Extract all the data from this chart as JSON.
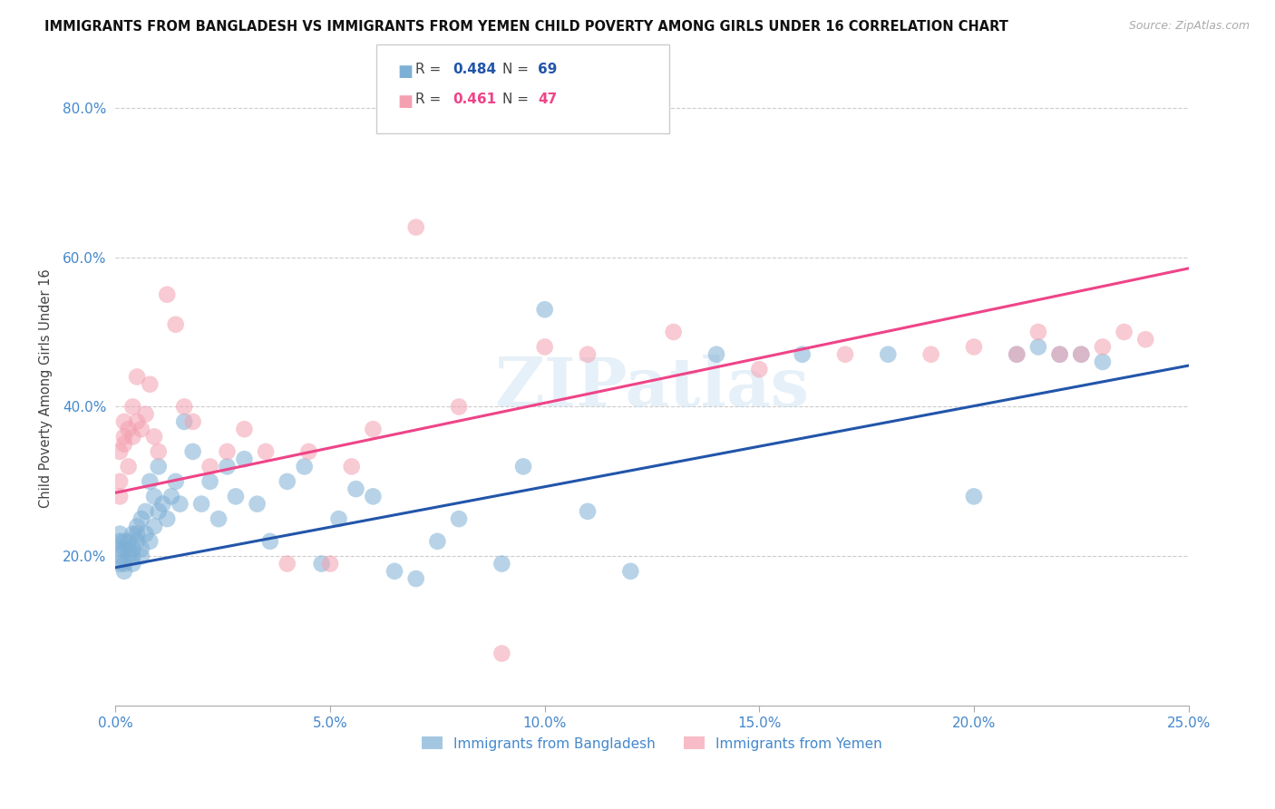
{
  "title": "IMMIGRANTS FROM BANGLADESH VS IMMIGRANTS FROM YEMEN CHILD POVERTY AMONG GIRLS UNDER 16 CORRELATION CHART",
  "source": "Source: ZipAtlas.com",
  "ylabel": "Child Poverty Among Girls Under 16",
  "xlim": [
    0.0,
    0.25
  ],
  "ylim": [
    0.0,
    0.85
  ],
  "xticks": [
    0.0,
    0.05,
    0.1,
    0.15,
    0.2,
    0.25
  ],
  "yticks": [
    0.0,
    0.2,
    0.4,
    0.6,
    0.8
  ],
  "xtick_labels": [
    "0.0%",
    "5.0%",
    "10.0%",
    "15.0%",
    "20.0%",
    "25.0%"
  ],
  "ytick_labels": [
    "",
    "20.0%",
    "40.0%",
    "60.0%",
    "80.0%"
  ],
  "legend_labels": [
    "Immigrants from Bangladesh",
    "Immigrants from Yemen"
  ],
  "legend_R": [
    0.484,
    0.461
  ],
  "legend_N": [
    69,
    47
  ],
  "blue_color": "#7EB0D5",
  "pink_color": "#F4A0B0",
  "blue_line_color": "#2255AA",
  "pink_line_color": "#EE4488",
  "title_color": "#111111",
  "axis_color": "#4488CC",
  "watermark": "ZIPatlas",
  "bangladesh_x": [
    0.001,
    0.001,
    0.001,
    0.001,
    0.001,
    0.002,
    0.002,
    0.002,
    0.002,
    0.003,
    0.003,
    0.003,
    0.004,
    0.004,
    0.004,
    0.004,
    0.005,
    0.005,
    0.005,
    0.006,
    0.006,
    0.006,
    0.007,
    0.007,
    0.008,
    0.008,
    0.009,
    0.009,
    0.01,
    0.01,
    0.011,
    0.012,
    0.013,
    0.014,
    0.015,
    0.016,
    0.018,
    0.02,
    0.022,
    0.024,
    0.026,
    0.028,
    0.03,
    0.033,
    0.036,
    0.04,
    0.044,
    0.048,
    0.052,
    0.056,
    0.06,
    0.065,
    0.07,
    0.075,
    0.08,
    0.09,
    0.095,
    0.1,
    0.11,
    0.12,
    0.14,
    0.16,
    0.18,
    0.2,
    0.21,
    0.215,
    0.22,
    0.225,
    0.23
  ],
  "bangladesh_y": [
    0.19,
    0.2,
    0.21,
    0.22,
    0.23,
    0.18,
    0.19,
    0.21,
    0.22,
    0.2,
    0.21,
    0.22,
    0.21,
    0.23,
    0.19,
    0.2,
    0.22,
    0.23,
    0.24,
    0.2,
    0.21,
    0.25,
    0.23,
    0.26,
    0.22,
    0.3,
    0.28,
    0.24,
    0.26,
    0.32,
    0.27,
    0.25,
    0.28,
    0.3,
    0.27,
    0.38,
    0.34,
    0.27,
    0.3,
    0.25,
    0.32,
    0.28,
    0.33,
    0.27,
    0.22,
    0.3,
    0.32,
    0.19,
    0.25,
    0.29,
    0.28,
    0.18,
    0.17,
    0.22,
    0.25,
    0.19,
    0.32,
    0.53,
    0.26,
    0.18,
    0.47,
    0.47,
    0.47,
    0.28,
    0.47,
    0.48,
    0.47,
    0.47,
    0.46
  ],
  "yemen_x": [
    0.001,
    0.001,
    0.001,
    0.002,
    0.002,
    0.002,
    0.003,
    0.003,
    0.004,
    0.004,
    0.005,
    0.005,
    0.006,
    0.007,
    0.008,
    0.009,
    0.01,
    0.012,
    0.014,
    0.016,
    0.018,
    0.022,
    0.026,
    0.03,
    0.035,
    0.04,
    0.045,
    0.05,
    0.055,
    0.06,
    0.07,
    0.08,
    0.09,
    0.1,
    0.11,
    0.13,
    0.15,
    0.17,
    0.19,
    0.2,
    0.21,
    0.215,
    0.22,
    0.225,
    0.23,
    0.235,
    0.24
  ],
  "yemen_y": [
    0.28,
    0.3,
    0.34,
    0.35,
    0.38,
    0.36,
    0.32,
    0.37,
    0.36,
    0.4,
    0.38,
    0.44,
    0.37,
    0.39,
    0.43,
    0.36,
    0.34,
    0.55,
    0.51,
    0.4,
    0.38,
    0.32,
    0.34,
    0.37,
    0.34,
    0.19,
    0.34,
    0.19,
    0.32,
    0.37,
    0.64,
    0.4,
    0.07,
    0.48,
    0.47,
    0.5,
    0.45,
    0.47,
    0.47,
    0.48,
    0.47,
    0.5,
    0.47,
    0.47,
    0.48,
    0.5,
    0.49
  ],
  "blue_line_x0": 0.0,
  "blue_line_y0": 0.185,
  "blue_line_x1": 0.25,
  "blue_line_y1": 0.455,
  "pink_line_x0": 0.0,
  "pink_line_y0": 0.285,
  "pink_line_x1": 0.25,
  "pink_line_y1": 0.585
}
